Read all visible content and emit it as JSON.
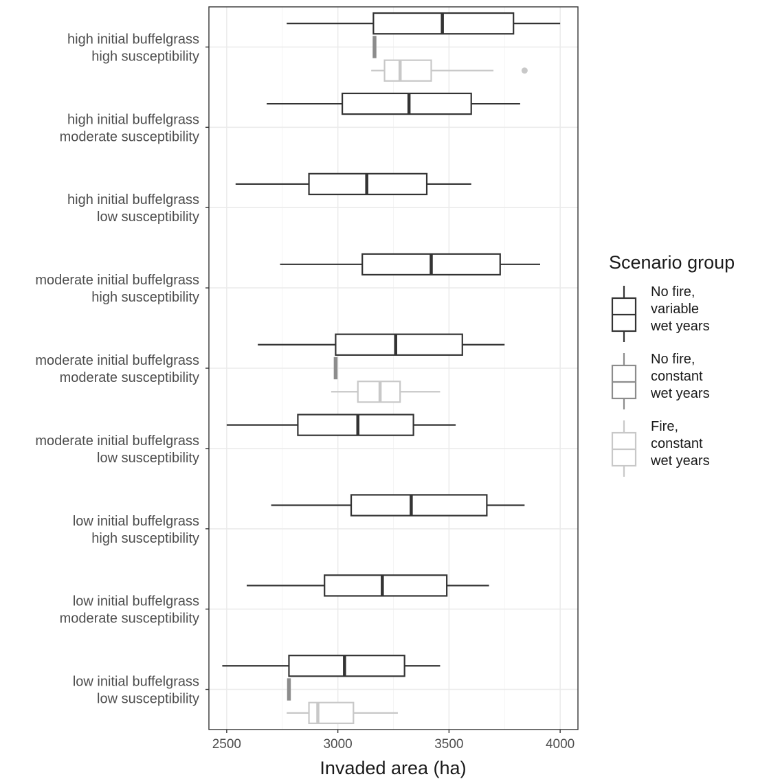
{
  "chart_data": {
    "type": "boxplot",
    "orientation": "horizontal",
    "xlabel": "Invaded area (ha)",
    "xlim": [
      2420,
      4080
    ],
    "xticks": [
      2500,
      3000,
      3500,
      4000
    ],
    "xtick_labels": [
      "2500",
      "3000",
      "3500",
      "4000"
    ],
    "grid": true,
    "legend": {
      "title": "Scenario group",
      "position": "right",
      "entries": [
        {
          "lines": [
            "No fire,",
            "variable",
            "wet years"
          ],
          "color": "#333333"
        },
        {
          "lines": [
            "No fire,",
            "constant",
            "wet years"
          ],
          "color": "#8c8c8c"
        },
        {
          "lines": [
            "Fire,",
            "constant",
            "wet years"
          ],
          "color": "#c8c8c8"
        }
      ]
    },
    "categories": [
      {
        "line1": "high initial buffelgrass",
        "line2": "high susceptibility"
      },
      {
        "line1": "high initial buffelgrass",
        "line2": "moderate susceptibility"
      },
      {
        "line1": "high initial buffelgrass",
        "line2": "low susceptibility"
      },
      {
        "line1": "moderate initial buffelgrass",
        "line2": "high susceptibility"
      },
      {
        "line1": "moderate initial buffelgrass",
        "line2": "moderate susceptibility"
      },
      {
        "line1": "moderate initial buffelgrass",
        "line2": "low susceptibility"
      },
      {
        "line1": "low initial buffelgrass",
        "line2": "high susceptibility"
      },
      {
        "line1": "low initial buffelgrass",
        "line2": "moderate susceptibility"
      },
      {
        "line1": "low initial buffelgrass",
        "line2": "low susceptibility"
      }
    ],
    "series": [
      {
        "color": "#333333",
        "boxes": [
          {
            "category": 0,
            "min": 2770,
            "q1": 3160,
            "median": 3470,
            "q3": 3790,
            "max": 4000,
            "outliers": []
          },
          {
            "category": 1,
            "min": 2680,
            "q1": 3020,
            "median": 3320,
            "q3": 3600,
            "max": 3820,
            "outliers": []
          },
          {
            "category": 2,
            "min": 2540,
            "q1": 2870,
            "median": 3130,
            "q3": 3400,
            "max": 3600,
            "outliers": []
          },
          {
            "category": 3,
            "min": 2740,
            "q1": 3110,
            "median": 3420,
            "q3": 3730,
            "max": 3910,
            "outliers": []
          },
          {
            "category": 4,
            "min": 2640,
            "q1": 2990,
            "median": 3260,
            "q3": 3560,
            "max": 3750,
            "outliers": []
          },
          {
            "category": 5,
            "min": 2500,
            "q1": 2820,
            "median": 3090,
            "q3": 3340,
            "max": 3530,
            "outliers": []
          },
          {
            "category": 6,
            "min": 2700,
            "q1": 3060,
            "median": 3330,
            "q3": 3670,
            "max": 3840,
            "outliers": []
          },
          {
            "category": 7,
            "min": 2590,
            "q1": 2940,
            "median": 3200,
            "q3": 3490,
            "max": 3680,
            "outliers": []
          },
          {
            "category": 8,
            "min": 2480,
            "q1": 2780,
            "median": 3030,
            "q3": 3300,
            "max": 3460,
            "outliers": []
          }
        ]
      },
      {
        "color": "#8c8c8c",
        "boxes": [
          {
            "category": 0,
            "min": 3160,
            "q1": 3160,
            "median": 3165,
            "q3": 3170,
            "max": 3170,
            "outliers": []
          },
          {
            "category": 4,
            "min": 2985,
            "q1": 2985,
            "median": 2990,
            "q3": 2995,
            "max": 2995,
            "outliers": []
          },
          {
            "category": 8,
            "min": 2775,
            "q1": 2775,
            "median": 2780,
            "q3": 2785,
            "max": 2785,
            "outliers": []
          }
        ]
      },
      {
        "color": "#c8c8c8",
        "boxes": [
          {
            "category": 0,
            "min": 3150,
            "q1": 3210,
            "median": 3280,
            "q3": 3420,
            "max": 3700,
            "outliers": [
              3840
            ]
          },
          {
            "category": 4,
            "min": 2970,
            "q1": 3090,
            "median": 3190,
            "q3": 3280,
            "max": 3460,
            "outliers": []
          },
          {
            "category": 8,
            "min": 2770,
            "q1": 2870,
            "median": 2910,
            "q3": 3070,
            "max": 3270,
            "outliers": []
          }
        ]
      }
    ]
  }
}
